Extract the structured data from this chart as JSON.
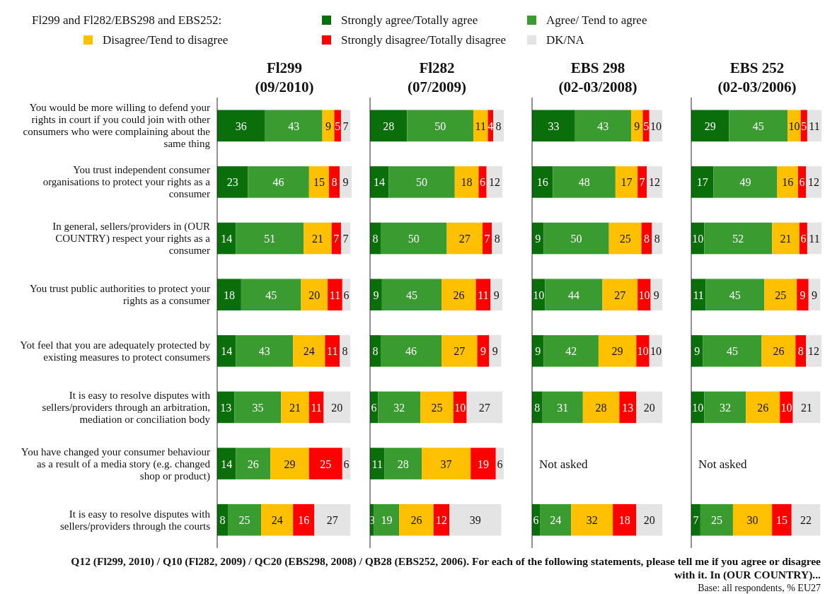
{
  "chart_data": [
    {
      "type": "bar",
      "orientation": "horizontal",
      "stacked": true,
      "data_labels": true,
      "tick_labels": "y",
      "legend": "top",
      "legend_title": "Fl299 and Fl282/EBS298 and EBS252:",
      "title": "Fl299",
      "subtitle": "(09/2010)",
      "xlim": [
        0,
        101
      ],
      "categories": [
        "You would be more willing to defend your rights in court if you could join with other consumers who were complaining about the same thing",
        "You trust independent consumer organisations to protect your rights as a consumer",
        "In general, sellers/providers in (OUR COUNTRY) respect your rights as a consumer",
        "You trust public authorities to protect your rights as a consumer",
        "Yot feel that you are adequately protected by existing measures to protect consumers",
        "It is easy to resolve disputes with sellers/providers through an arbitration, mediation or conciliation body",
        "You have changed your consumer behaviour as a result of a media story (e.g. changed shop or product)",
        "It is easy to resolve disputes with sellers/providers through the courts"
      ],
      "series": [
        {
          "name": "Strongly agree/Totally agree",
          "color": "#0a6e0a",
          "values": [
            36,
            23,
            14,
            18,
            14,
            13,
            14,
            8
          ]
        },
        {
          "name": "Agree/ Tend to agree",
          "color": "#3a9c30",
          "values": [
            43,
            46,
            51,
            45,
            43,
            35,
            26,
            25
          ]
        },
        {
          "name": "Disagree/Tend to disagree",
          "color": "#ffc000",
          "values": [
            9,
            15,
            21,
            20,
            24,
            21,
            29,
            24
          ]
        },
        {
          "name": "Strongly disagree/Totally disagree",
          "color": "#ff0000",
          "values": [
            5,
            8,
            7,
            11,
            11,
            11,
            25,
            16
          ]
        },
        {
          "name": "DK/NA",
          "color": "#e4e4e4",
          "values": [
            7,
            9,
            7,
            6,
            8,
            20,
            6,
            27
          ]
        }
      ],
      "annotations": [
        "Q12 (Fl299, 2010) / Q10 (Fl282, 2009) / QC20 (EBS298, 2008) / QB28 (EBS252, 2006). For each of the following statements, please tell me if you agree or disagree with it. In (OUR COUNTRY)...",
        "Base: all respondents, % EU27"
      ]
    },
    {
      "type": "bar",
      "orientation": "horizontal",
      "stacked": true,
      "data_labels": true,
      "tick_labels": false,
      "title": "Fl282",
      "subtitle": "(07/2009)",
      "xlim": [
        0,
        101
      ],
      "categories": [
        null,
        null,
        null,
        null,
        null,
        null,
        null,
        null
      ],
      "series": [
        {
          "color": "#0a6e0a",
          "values": [
            28,
            14,
            8,
            9,
            8,
            6,
            11,
            3
          ]
        },
        {
          "color": "#3a9c30",
          "values": [
            50,
            50,
            50,
            45,
            46,
            32,
            28,
            19
          ]
        },
        {
          "color": "#ffc000",
          "values": [
            11,
            18,
            27,
            26,
            27,
            25,
            37,
            26
          ]
        },
        {
          "color": "#ff0000",
          "values": [
            4,
            6,
            7,
            11,
            9,
            10,
            19,
            12
          ]
        },
        {
          "color": "#e4e4e4",
          "values": [
            8,
            12,
            8,
            9,
            9,
            27,
            6,
            39
          ]
        }
      ]
    },
    {
      "type": "bar",
      "orientation": "horizontal",
      "stacked": true,
      "data_labels": true,
      "tick_labels": false,
      "title": "EBS 298",
      "subtitle": "(02-03/2008)",
      "xlim": [
        0,
        101
      ],
      "categories": [
        null,
        null,
        null,
        null,
        null,
        null,
        null,
        null
      ],
      "series": [
        {
          "color": "#0a6e0a",
          "values": [
            33,
            16,
            9,
            10,
            9,
            8,
            null,
            6
          ]
        },
        {
          "color": "#3a9c30",
          "values": [
            43,
            48,
            50,
            44,
            42,
            31,
            null,
            24
          ]
        },
        {
          "color": "#ffc000",
          "values": [
            9,
            17,
            25,
            27,
            29,
            28,
            null,
            32
          ]
        },
        {
          "color": "#ff0000",
          "values": [
            5,
            7,
            8,
            10,
            10,
            13,
            null,
            18
          ]
        },
        {
          "color": "#e4e4e4",
          "values": [
            10,
            12,
            8,
            9,
            10,
            20,
            null,
            20
          ]
        }
      ],
      "annotations": [
        "Not asked"
      ]
    },
    {
      "type": "bar",
      "orientation": "horizontal",
      "stacked": true,
      "data_labels": true,
      "tick_labels": false,
      "title": "EBS 252",
      "subtitle": "(02-03/2006)",
      "xlim": [
        0,
        101
      ],
      "categories": [
        null,
        null,
        null,
        null,
        null,
        null,
        null,
        null
      ],
      "series": [
        {
          "color": "#0a6e0a",
          "values": [
            29,
            17,
            10,
            11,
            9,
            10,
            null,
            7
          ]
        },
        {
          "color": "#3a9c30",
          "values": [
            45,
            49,
            52,
            45,
            45,
            32,
            null,
            25
          ]
        },
        {
          "color": "#ffc000",
          "values": [
            10,
            16,
            21,
            25,
            26,
            26,
            null,
            30
          ]
        },
        {
          "color": "#ff0000",
          "values": [
            5,
            6,
            6,
            9,
            8,
            10,
            null,
            15
          ]
        },
        {
          "color": "#e4e4e4",
          "values": [
            11,
            12,
            11,
            9,
            12,
            21,
            null,
            22
          ]
        }
      ],
      "annotations": [
        "Not asked"
      ]
    }
  ]
}
